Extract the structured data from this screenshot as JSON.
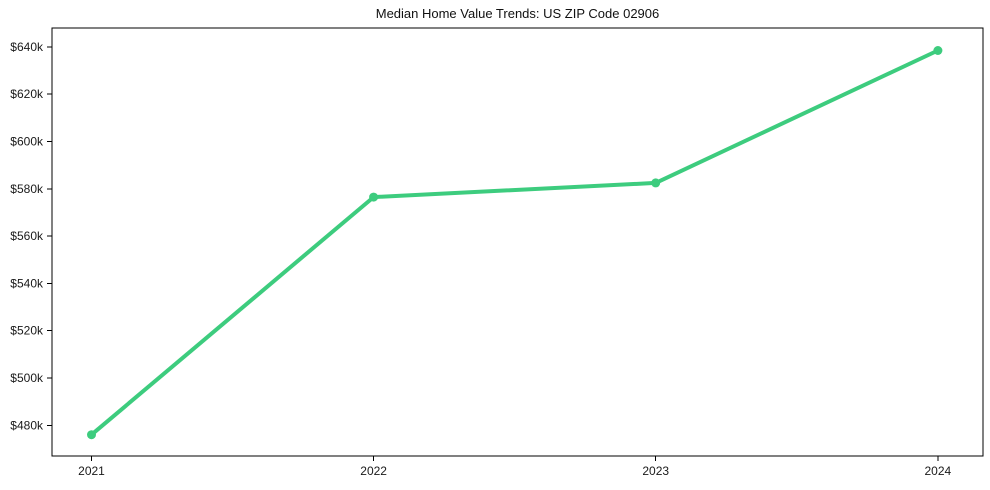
{
  "chart_data": {
    "type": "line",
    "title": "Median Home Value Trends: US ZIP Code 02906",
    "x": [
      2021,
      2022,
      2023,
      2024
    ],
    "x_tick_labels": [
      "2021",
      "2022",
      "2023",
      "2024"
    ],
    "series": [
      {
        "name": "Median home value",
        "values": [
          476000,
          576500,
          582500,
          638500
        ]
      }
    ],
    "y_ticks": [
      480000,
      500000,
      520000,
      540000,
      560000,
      580000,
      600000,
      620000,
      640000
    ],
    "y_tick_labels": [
      "$480k",
      "$500k",
      "$520k",
      "$540k",
      "$560k",
      "$580k",
      "$600k",
      "$620k",
      "$640k"
    ],
    "xlim": [
      2020.86,
      2024.16
    ],
    "ylim": [
      467000,
      648000
    ],
    "grid": false,
    "legend": "none",
    "line_color": "#3dcc7e",
    "line_width": 4,
    "marker_diameter": 9,
    "axis_color": "#000000",
    "tick_text_color": "#1a1a1a",
    "background_color": "#ffffff"
  }
}
